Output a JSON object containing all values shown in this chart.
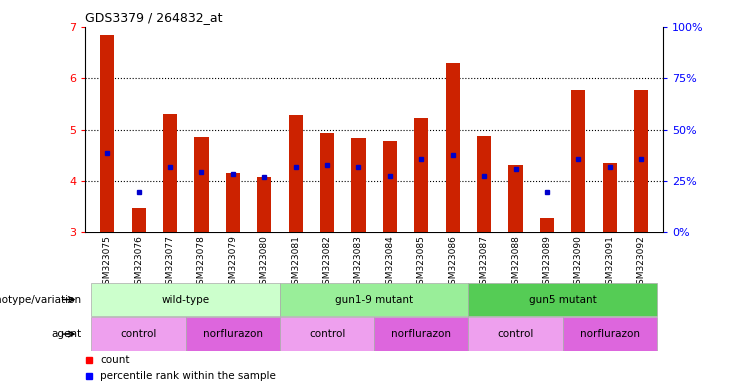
{
  "title": "GDS3379 / 264832_at",
  "samples": [
    "GSM323075",
    "GSM323076",
    "GSM323077",
    "GSM323078",
    "GSM323079",
    "GSM323080",
    "GSM323081",
    "GSM323082",
    "GSM323083",
    "GSM323084",
    "GSM323085",
    "GSM323086",
    "GSM323087",
    "GSM323088",
    "GSM323089",
    "GSM323090",
    "GSM323091",
    "GSM323092"
  ],
  "bar_values": [
    6.85,
    3.47,
    5.3,
    4.85,
    4.15,
    4.08,
    5.28,
    4.93,
    4.83,
    4.78,
    5.22,
    6.3,
    4.88,
    4.32,
    3.27,
    5.78,
    4.35,
    5.78
  ],
  "blue_y": [
    4.55,
    3.78,
    4.28,
    4.18,
    4.14,
    4.08,
    4.28,
    4.32,
    4.27,
    4.1,
    4.43,
    4.5,
    4.1,
    4.24,
    3.78,
    4.42,
    4.28,
    4.42
  ],
  "bar_color": "#cc2200",
  "blue_color": "#0000cc",
  "ylim": [
    3.0,
    7.0
  ],
  "yticks_left": [
    3,
    4,
    5,
    6,
    7
  ],
  "right_ticks_pct": [
    0,
    25,
    50,
    75,
    100
  ],
  "genotype_groups": [
    {
      "label": "wild-type",
      "start": 0,
      "end": 6,
      "color": "#ccffcc"
    },
    {
      "label": "gun1-9 mutant",
      "start": 6,
      "end": 12,
      "color": "#99ee99"
    },
    {
      "label": "gun5 mutant",
      "start": 12,
      "end": 18,
      "color": "#55cc55"
    }
  ],
  "agent_groups": [
    {
      "label": "control",
      "start": 0,
      "end": 3,
      "color": "#eea0ee"
    },
    {
      "label": "norflurazon",
      "start": 3,
      "end": 6,
      "color": "#dd66dd"
    },
    {
      "label": "control",
      "start": 6,
      "end": 9,
      "color": "#eea0ee"
    },
    {
      "label": "norflurazon",
      "start": 9,
      "end": 12,
      "color": "#dd66dd"
    },
    {
      "label": "control",
      "start": 12,
      "end": 15,
      "color": "#eea0ee"
    },
    {
      "label": "norflurazon",
      "start": 15,
      "end": 18,
      "color": "#dd66dd"
    }
  ],
  "bar_width": 0.45
}
